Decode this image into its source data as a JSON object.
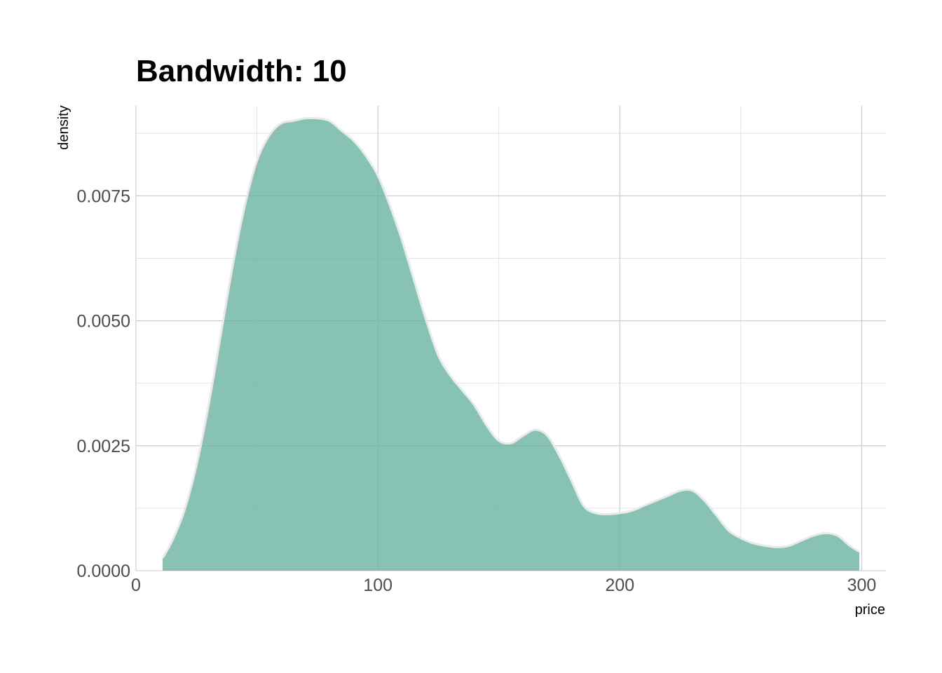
{
  "chart_data": {
    "type": "area",
    "title": "Bandwidth: 10",
    "xlabel": "price",
    "ylabel": "density",
    "xlim": [
      0,
      310
    ],
    "ylim": [
      0,
      0.0093
    ],
    "x_ticks": [
      0,
      100,
      200,
      300
    ],
    "x_tick_labels": [
      "0",
      "100",
      "200",
      "300"
    ],
    "y_ticks": [
      0,
      0.0025,
      0.005,
      0.0075
    ],
    "y_tick_labels": [
      "0.0000",
      "0.0025",
      "0.0050",
      "0.0075"
    ],
    "grid": true,
    "fill_color": "#69b3a2",
    "line_color": "#e9e9e9",
    "series": [
      {
        "x": [
          11,
          15,
          20,
          25,
          30,
          35,
          40,
          45,
          50,
          55,
          60,
          65,
          70,
          75,
          80,
          85,
          90,
          95,
          100,
          105,
          110,
          115,
          120,
          125,
          130,
          135,
          140,
          145,
          150,
          155,
          160,
          165,
          170,
          175,
          180,
          185,
          190,
          195,
          200,
          205,
          210,
          215,
          220,
          225,
          230,
          235,
          240,
          245,
          250,
          255,
          260,
          265,
          270,
          275,
          280,
          285,
          290,
          295,
          299
        ],
        "values": [
          0.00025,
          0.0006,
          0.0012,
          0.0021,
          0.0033,
          0.0047,
          0.0061,
          0.0073,
          0.0082,
          0.0087,
          0.00895,
          0.009,
          0.00905,
          0.00905,
          0.009,
          0.0088,
          0.0086,
          0.0083,
          0.0079,
          0.0073,
          0.0066,
          0.0058,
          0.005,
          0.0043,
          0.0039,
          0.0036,
          0.0033,
          0.0029,
          0.0026,
          0.00255,
          0.0027,
          0.00282,
          0.0027,
          0.0023,
          0.0018,
          0.0013,
          0.00115,
          0.00113,
          0.00115,
          0.0012,
          0.0013,
          0.0014,
          0.0015,
          0.0016,
          0.0016,
          0.0014,
          0.0011,
          0.0008,
          0.00065,
          0.00055,
          0.0005,
          0.00047,
          0.0005,
          0.0006,
          0.0007,
          0.00075,
          0.0007,
          0.0005,
          0.00038
        ]
      }
    ]
  }
}
